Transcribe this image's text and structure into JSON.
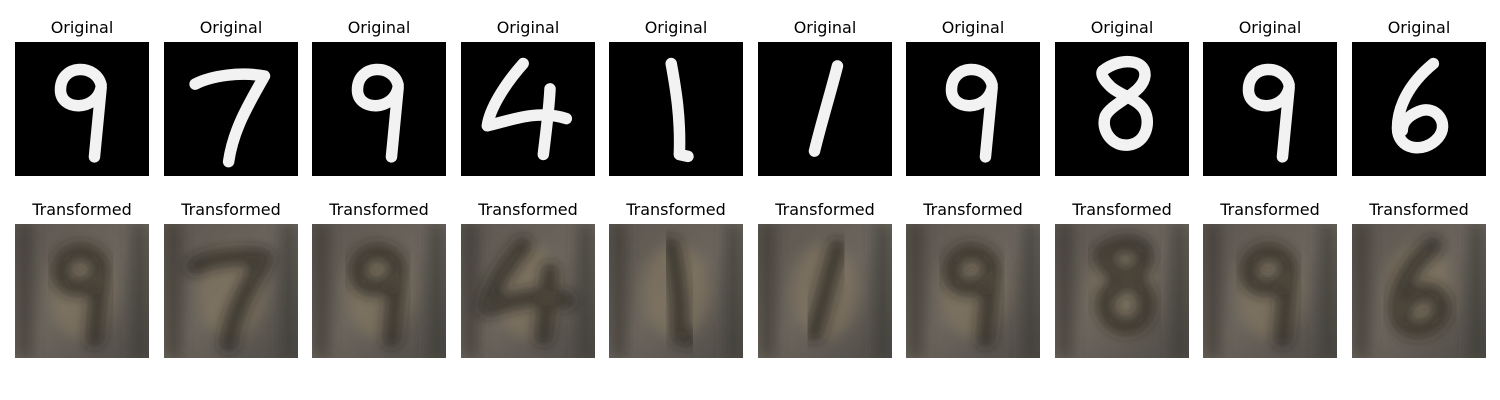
{
  "rows": [
    {
      "name": "original",
      "panels": [
        {
          "title": "Original",
          "digit": "9"
        },
        {
          "title": "Original",
          "digit": "7"
        },
        {
          "title": "Original",
          "digit": "9"
        },
        {
          "title": "Original",
          "digit": "4"
        },
        {
          "title": "Original",
          "digit": "1"
        },
        {
          "title": "Original",
          "digit": "1"
        },
        {
          "title": "Original",
          "digit": "9"
        },
        {
          "title": "Original",
          "digit": "8"
        },
        {
          "title": "Original",
          "digit": "9"
        },
        {
          "title": "Original",
          "digit": "6"
        }
      ]
    },
    {
      "name": "transformed",
      "panels": [
        {
          "title": "Transformed",
          "digit": "9"
        },
        {
          "title": "Transformed",
          "digit": "7"
        },
        {
          "title": "Transformed",
          "digit": "9"
        },
        {
          "title": "Transformed",
          "digit": "4"
        },
        {
          "title": "Transformed",
          "digit": "1"
        },
        {
          "title": "Transformed",
          "digit": "1"
        },
        {
          "title": "Transformed",
          "digit": "9"
        },
        {
          "title": "Transformed",
          "digit": "8"
        },
        {
          "title": "Transformed",
          "digit": "9"
        },
        {
          "title": "Transformed",
          "digit": "6"
        }
      ]
    }
  ],
  "colors": {
    "original_background": "#000000",
    "original_stroke": "#f2f2f2",
    "transformed_background": "#6b655d",
    "transformed_dark": "#1c1b1f",
    "transformed_warm": "#9c8a66"
  }
}
